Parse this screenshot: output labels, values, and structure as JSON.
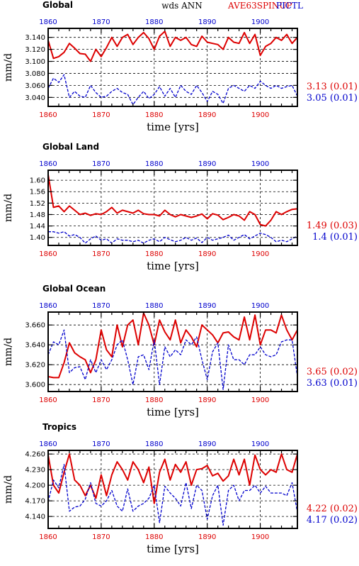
{
  "header": {
    "center_label": "wds  ANN",
    "exp_label_red": "AVE63SPINUP",
    "exp_label_blue": "PICTL"
  },
  "colors": {
    "red": "#dd0000",
    "blue": "#0000cc"
  },
  "chart_data": [
    {
      "type": "line",
      "title": "Global",
      "ylabel": "mm/d",
      "xlabel": "time [yrs]",
      "xlim": [
        1860,
        1907
      ],
      "ylim": [
        3.025,
        3.155
      ],
      "yticks": [
        "3.040",
        "3.060",
        "3.080",
        "3.100",
        "3.120",
        "3.140"
      ],
      "xticks": [
        "1860",
        "1870",
        "1880",
        "1890",
        "1900"
      ],
      "x": [
        1860,
        1861,
        1862,
        1863,
        1864,
        1865,
        1866,
        1867,
        1868,
        1869,
        1870,
        1871,
        1872,
        1873,
        1874,
        1875,
        1876,
        1877,
        1878,
        1879,
        1880,
        1881,
        1882,
        1883,
        1884,
        1885,
        1886,
        1887,
        1888,
        1889,
        1890,
        1891,
        1892,
        1893,
        1894,
        1895,
        1896,
        1897,
        1898,
        1899,
        1900,
        1901,
        1902,
        1903,
        1904,
        1905,
        1906,
        1907
      ],
      "series": [
        {
          "name": "AVE63SPINUP",
          "color": "#dd0000",
          "stat": "3.13 (0.01)",
          "values": [
            3.135,
            3.105,
            3.108,
            3.115,
            3.13,
            3.122,
            3.113,
            3.112,
            3.1,
            3.12,
            3.108,
            3.123,
            3.14,
            3.125,
            3.14,
            3.145,
            3.128,
            3.14,
            3.148,
            3.138,
            3.12,
            3.142,
            3.15,
            3.125,
            3.14,
            3.135,
            3.14,
            3.128,
            3.125,
            3.142,
            3.132,
            3.13,
            3.128,
            3.12,
            3.14,
            3.132,
            3.13,
            3.148,
            3.13,
            3.145,
            3.11,
            3.125,
            3.13,
            3.14,
            3.135,
            3.145,
            3.13,
            3.14
          ]
        },
        {
          "name": "PICTL",
          "color": "#0000cc",
          "stat": "3.05 (0.01)",
          "values": [
            3.055,
            3.072,
            3.065,
            3.078,
            3.04,
            3.05,
            3.042,
            3.04,
            3.06,
            3.048,
            3.04,
            3.042,
            3.05,
            3.055,
            3.048,
            3.045,
            3.028,
            3.04,
            3.05,
            3.038,
            3.045,
            3.058,
            3.042,
            3.055,
            3.04,
            3.06,
            3.05,
            3.045,
            3.06,
            3.048,
            3.033,
            3.05,
            3.045,
            3.03,
            3.055,
            3.06,
            3.055,
            3.05,
            3.06,
            3.055,
            3.067,
            3.06,
            3.055,
            3.06,
            3.055,
            3.058,
            3.06,
            3.042
          ]
        }
      ]
    },
    {
      "type": "line",
      "title": "Global Land",
      "ylabel": "mm/d",
      "xlabel": "time [yrs]",
      "xlim": [
        1860,
        1907
      ],
      "ylim": [
        1.372,
        1.635
      ],
      "yticks": [
        "1.40",
        "1.44",
        "1.48",
        "1.52",
        "1.56",
        "1.60"
      ],
      "xticks": [
        "1860",
        "1870",
        "1880",
        "1890",
        "1900"
      ],
      "x": [
        1860,
        1861,
        1862,
        1863,
        1864,
        1865,
        1866,
        1867,
        1868,
        1869,
        1870,
        1871,
        1872,
        1873,
        1874,
        1875,
        1876,
        1877,
        1878,
        1879,
        1880,
        1881,
        1882,
        1883,
        1884,
        1885,
        1886,
        1887,
        1888,
        1889,
        1890,
        1891,
        1892,
        1893,
        1894,
        1895,
        1896,
        1897,
        1898,
        1899,
        1900,
        1901,
        1902,
        1903,
        1904,
        1905,
        1906,
        1907
      ],
      "series": [
        {
          "name": "AVE63SPINUP",
          "color": "#dd0000",
          "stat": "1.49 (0.03)",
          "values": [
            1.62,
            1.505,
            1.51,
            1.49,
            1.51,
            1.495,
            1.48,
            1.485,
            1.477,
            1.483,
            1.48,
            1.49,
            1.505,
            1.485,
            1.495,
            1.49,
            1.485,
            1.495,
            1.483,
            1.48,
            1.48,
            1.475,
            1.495,
            1.48,
            1.472,
            1.48,
            1.475,
            1.47,
            1.475,
            1.482,
            1.465,
            1.483,
            1.478,
            1.462,
            1.47,
            1.48,
            1.475,
            1.46,
            1.49,
            1.48,
            1.445,
            1.44,
            1.46,
            1.49,
            1.48,
            1.49,
            1.498,
            1.5
          ]
        },
        {
          "name": "PICTL",
          "color": "#0000cc",
          "stat": "1.4 (0.01)",
          "values": [
            1.42,
            1.42,
            1.415,
            1.42,
            1.405,
            1.41,
            1.4,
            1.38,
            1.395,
            1.405,
            1.39,
            1.395,
            1.38,
            1.395,
            1.39,
            1.39,
            1.385,
            1.39,
            1.38,
            1.39,
            1.395,
            1.385,
            1.4,
            1.392,
            1.385,
            1.39,
            1.4,
            1.39,
            1.398,
            1.382,
            1.4,
            1.39,
            1.395,
            1.4,
            1.408,
            1.39,
            1.4,
            1.41,
            1.395,
            1.405,
            1.415,
            1.41,
            1.4,
            1.385,
            1.39,
            1.385,
            1.395,
            1.405
          ]
        }
      ]
    },
    {
      "type": "line",
      "title": "Global Ocean",
      "ylabel": "mm/d",
      "xlabel": "time [yrs]",
      "xlim": [
        1860,
        1907
      ],
      "ylim": [
        3.593,
        3.673
      ],
      "yticks": [
        "3.600",
        "3.620",
        "3.640",
        "3.660"
      ],
      "xticks": [
        "1860",
        "1870",
        "1880",
        "1890",
        "1900"
      ],
      "x": [
        1860,
        1861,
        1862,
        1863,
        1864,
        1865,
        1866,
        1867,
        1868,
        1869,
        1870,
        1871,
        1872,
        1873,
        1874,
        1875,
        1876,
        1877,
        1878,
        1879,
        1880,
        1881,
        1882,
        1883,
        1884,
        1885,
        1886,
        1887,
        1888,
        1889,
        1890,
        1891,
        1892,
        1893,
        1894,
        1895,
        1896,
        1897,
        1898,
        1899,
        1900,
        1901,
        1902,
        1903,
        1904,
        1905,
        1906,
        1907
      ],
      "series": [
        {
          "name": "AVE63SPINUP",
          "color": "#dd0000",
          "stat": "3.65 (0.02)",
          "values": [
            3.608,
            3.607,
            3.607,
            3.622,
            3.642,
            3.632,
            3.628,
            3.625,
            3.612,
            3.625,
            3.655,
            3.635,
            3.628,
            3.66,
            3.638,
            3.66,
            3.665,
            3.64,
            3.672,
            3.66,
            3.64,
            3.665,
            3.653,
            3.645,
            3.665,
            3.642,
            3.655,
            3.648,
            3.638,
            3.66,
            3.655,
            3.65,
            3.642,
            3.652,
            3.653,
            3.648,
            3.645,
            3.668,
            3.645,
            3.67,
            3.64,
            3.655,
            3.655,
            3.652,
            3.67,
            3.655,
            3.645,
            3.655
          ]
        },
        {
          "name": "PICTL",
          "color": "#0000cc",
          "stat": "3.63 (0.01)",
          "values": [
            3.63,
            3.643,
            3.64,
            3.655,
            3.612,
            3.617,
            3.618,
            3.605,
            3.625,
            3.612,
            3.625,
            3.615,
            3.625,
            3.64,
            3.645,
            3.625,
            3.6,
            3.628,
            3.63,
            3.615,
            3.645,
            3.6,
            3.638,
            3.628,
            3.635,
            3.63,
            3.645,
            3.64,
            3.648,
            3.625,
            3.605,
            3.633,
            3.642,
            3.595,
            3.64,
            3.625,
            3.625,
            3.62,
            3.63,
            3.63,
            3.638,
            3.63,
            3.628,
            3.63,
            3.643,
            3.645,
            3.645,
            3.608
          ]
        }
      ]
    },
    {
      "type": "line",
      "title": "Tropics",
      "ylabel": "mm/d",
      "xlabel": "time [yrs]",
      "xlim": [
        1860,
        1907
      ],
      "ylim": [
        4.117,
        4.267
      ],
      "yticks": [
        "4.140",
        "4.170",
        "4.200",
        "4.230",
        "4.260"
      ],
      "xticks": [
        "1860",
        "1870",
        "1880",
        "1890",
        "1900"
      ],
      "x": [
        1860,
        1861,
        1862,
        1863,
        1864,
        1865,
        1866,
        1867,
        1868,
        1869,
        1870,
        1871,
        1872,
        1873,
        1874,
        1875,
        1876,
        1877,
        1878,
        1879,
        1880,
        1881,
        1882,
        1883,
        1884,
        1885,
        1886,
        1887,
        1888,
        1889,
        1890,
        1891,
        1892,
        1893,
        1894,
        1895,
        1896,
        1897,
        1898,
        1899,
        1900,
        1901,
        1902,
        1903,
        1904,
        1905,
        1906,
        1907
      ],
      "series": [
        {
          "name": "AVE63SPINUP",
          "color": "#dd0000",
          "stat": "4.22 (0.02)",
          "values": [
            4.258,
            4.2,
            4.185,
            4.225,
            4.26,
            4.21,
            4.2,
            4.18,
            4.2,
            4.175,
            4.22,
            4.18,
            4.22,
            4.245,
            4.23,
            4.21,
            4.245,
            4.23,
            4.205,
            4.235,
            4.165,
            4.225,
            4.25,
            4.21,
            4.24,
            4.225,
            4.245,
            4.2,
            4.23,
            4.232,
            4.238,
            4.218,
            4.223,
            4.208,
            4.218,
            4.25,
            4.22,
            4.25,
            4.2,
            4.258,
            4.23,
            4.22,
            4.23,
            4.225,
            4.26,
            4.23,
            4.225,
            4.26
          ]
        },
        {
          "name": "PICTL",
          "color": "#0000cc",
          "stat": "4.17 (0.02)",
          "values": [
            4.168,
            4.21,
            4.195,
            4.24,
            4.15,
            4.158,
            4.16,
            4.173,
            4.205,
            4.165,
            4.16,
            4.17,
            4.19,
            4.16,
            4.15,
            4.193,
            4.15,
            4.16,
            4.165,
            4.175,
            4.2,
            4.128,
            4.198,
            4.185,
            4.175,
            4.16,
            4.205,
            4.155,
            4.2,
            4.19,
            4.135,
            4.18,
            4.2,
            4.123,
            4.19,
            4.2,
            4.17,
            4.19,
            4.19,
            4.2,
            4.185,
            4.198,
            4.185,
            4.185,
            4.185,
            4.18,
            4.205,
            4.148
          ]
        }
      ]
    }
  ]
}
